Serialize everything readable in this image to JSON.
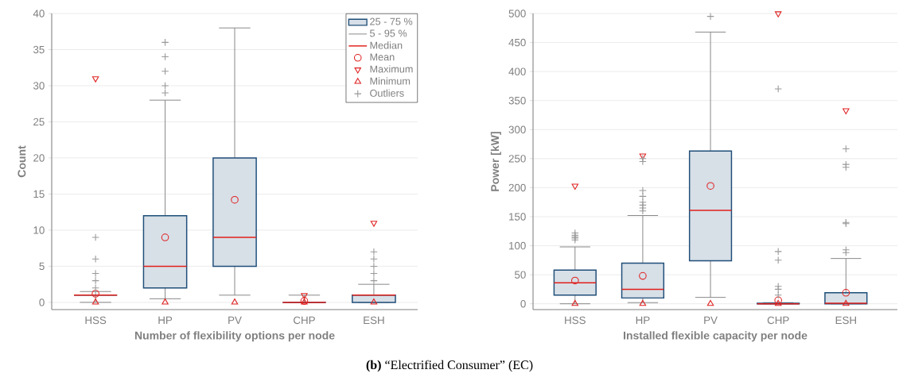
{
  "chart_data": [
    {
      "type": "box",
      "xlabel": "Number of flexibility options per node",
      "ylabel": "Count",
      "categories": [
        "HSS",
        "HP",
        "PV",
        "CHP",
        "ESH"
      ],
      "ylim": [
        -1,
        40
      ],
      "yticks": [
        0,
        5,
        10,
        15,
        20,
        25,
        30,
        35,
        40
      ],
      "grid": "y",
      "legend": "top right",
      "annotations": [
        "5 - 95 %",
        "Median"
      ],
      "series": [
        {
          "name": "25 - 75 %",
          "color": "#1f4e79",
          "boxes": [
            {
              "low": 0,
              "q1": 1,
              "median": 1,
              "q3": 1,
              "high": 1.5
            },
            {
              "low": 0.5,
              "q1": 2,
              "median": 5,
              "q3": 12,
              "high": 28
            },
            {
              "low": 1,
              "q1": 5,
              "median": 9,
              "q3": 20,
              "high": 38
            },
            {
              "low": 0,
              "q1": 0,
              "median": 0,
              "q3": 0,
              "high": 1
            },
            {
              "low": 0,
              "q1": 0,
              "median": 1,
              "q3": 1,
              "high": 2.5
            }
          ]
        },
        {
          "type": "scatter",
          "name": "Mean",
          "color": "#e02020",
          "marker": "circle",
          "x": [
            "HSS",
            "HP",
            "PV",
            "CHP",
            "ESH"
          ],
          "values": [
            1.2,
            9,
            14.2,
            0.2,
            null
          ]
        },
        {
          "type": "scatter",
          "name": "Maximum",
          "color": "#e02020",
          "marker": "triangle-down",
          "x": [
            "HSS",
            "HP",
            "PV",
            "CHP",
            "ESH"
          ],
          "values": [
            31,
            null,
            null,
            1,
            11
          ]
        },
        {
          "type": "scatter",
          "name": "Minimum",
          "color": "#e02020",
          "marker": "triangle",
          "x": [
            "HSS",
            "HP",
            "PV",
            "CHP",
            "ESH"
          ],
          "values": [
            0,
            0,
            0,
            0,
            0
          ]
        },
        {
          "type": "scatter",
          "name": "Outliers",
          "color": "#999999",
          "marker": "cross",
          "x": [
            "HSS",
            "HSS",
            "HSS",
            "HSS",
            "HSS",
            "HP",
            "HP",
            "HP",
            "HP",
            "HP",
            "ESH",
            "ESH",
            "ESH",
            "ESH",
            "ESH"
          ],
          "values": [
            2,
            3,
            4,
            6,
            9,
            29,
            30,
            32,
            34,
            36,
            3,
            4,
            5,
            6,
            7
          ]
        }
      ]
    },
    {
      "type": "box",
      "xlabel": "Installed flexible capacity per node",
      "ylabel": "Power [kW]",
      "categories": [
        "HSS",
        "HP",
        "PV",
        "CHP",
        "ESH"
      ],
      "ylim": [
        -10,
        500
      ],
      "yticks": [
        0,
        50,
        100,
        150,
        200,
        250,
        300,
        350,
        400,
        450,
        500
      ],
      "grid": "y",
      "annotations": [
        "**(b)** “Electrified Consumer” (EC)"
      ],
      "series": [
        {
          "color": "#1f4e79",
          "boxes": [
            {
              "low": 0,
              "q1": 15,
              "median": 36,
              "q3": 58,
              "high": 98
            },
            {
              "low": 2,
              "q1": 10,
              "median": 25,
              "q3": 70,
              "high": 152
            },
            {
              "low": 11,
              "q1": 74,
              "median": 161,
              "q3": 263,
              "high": 468
            },
            {
              "low": 0,
              "q1": 0,
              "median": 0,
              "q3": 1,
              "high": 2
            },
            {
              "low": 0,
              "q1": 0,
              "median": 1,
              "q3": 19,
              "high": 78
            }
          ]
        },
        {
          "type": "scatter",
          "color": "#e02020",
          "marker": "circle",
          "x": [
            "HSS",
            "HP",
            "PV",
            "CHP",
            "ESH"
          ],
          "values": [
            40,
            48,
            203,
            6,
            19
          ]
        },
        {
          "type": "scatter",
          "color": "#e02020",
          "marker": "triangle-down",
          "x": [
            "HSS",
            "HP",
            "PV",
            "CHP",
            "ESH"
          ],
          "values": [
            203,
            255,
            null,
            500,
            333
          ]
        },
        {
          "type": "scatter",
          "color": "#e02020",
          "marker": "triangle",
          "x": [
            "HSS",
            "HP",
            "PV",
            "CHP",
            "ESH"
          ],
          "values": [
            0,
            0,
            0,
            0,
            0
          ]
        },
        {
          "type": "scatter",
          "color": "#999999",
          "marker": "cross",
          "x": [
            "HSS",
            "HSS",
            "HSS",
            "HSS",
            "HSS",
            "HP",
            "HP",
            "HP",
            "HP",
            "HP",
            "HP",
            "HP",
            "HP",
            "PV",
            "CHP",
            "CHP",
            "CHP",
            "CHP",
            "CHP",
            "CHP",
            "ESH",
            "ESH",
            "ESH",
            "ESH",
            "ESH",
            "ESH",
            "ESH"
          ],
          "values": [
            110,
            113,
            115,
            118,
            122,
            160,
            165,
            170,
            175,
            185,
            195,
            245,
            250,
            495,
            15,
            25,
            30,
            75,
            90,
            370,
            88,
            93,
            138,
            140,
            235,
            240,
            267
          ]
        }
      ]
    }
  ]
}
